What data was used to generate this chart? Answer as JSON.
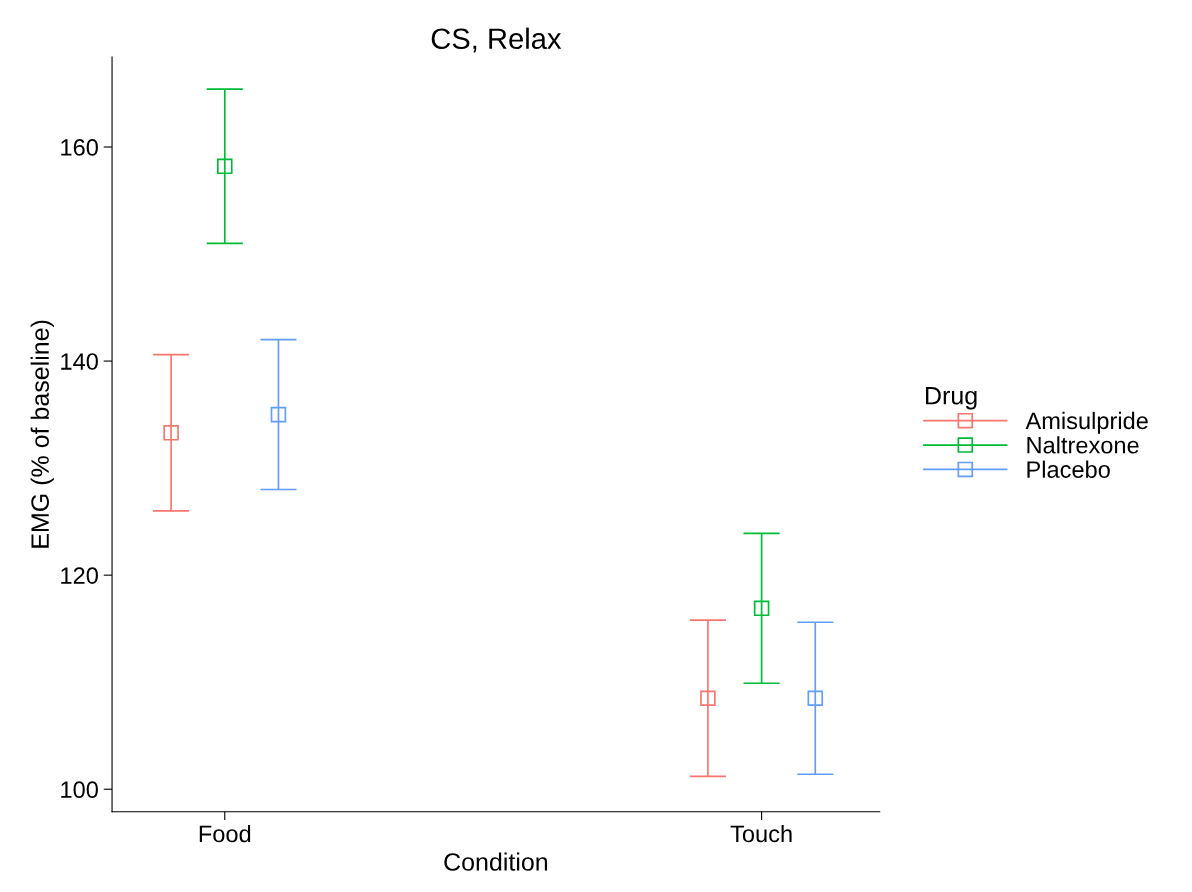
{
  "chart_data": {
    "type": "scatter",
    "title": "CS, Relax",
    "xlabel": "Condition",
    "ylabel": "EMG (% of baseline)",
    "legend_title": "Drug",
    "categories": [
      "Food",
      "Touch"
    ],
    "series": [
      {
        "name": "Amisulpride",
        "color": "#f8766d",
        "values": [
          133.3,
          108.5
        ],
        "errors": [
          7.3,
          7.3
        ]
      },
      {
        "name": "Naltrexone",
        "color": "#00ba38",
        "values": [
          158.2,
          116.9
        ],
        "errors": [
          7.2,
          7.0
        ]
      },
      {
        "name": "Placebo",
        "color": "#619cff",
        "values": [
          135.0,
          108.5
        ],
        "errors": [
          7.0,
          7.1
        ]
      }
    ],
    "ylim": [
      97.9,
      168.4
    ],
    "yticks": [
      100,
      120,
      140,
      160
    ],
    "grid": false,
    "legend": "right",
    "marker": "square"
  }
}
